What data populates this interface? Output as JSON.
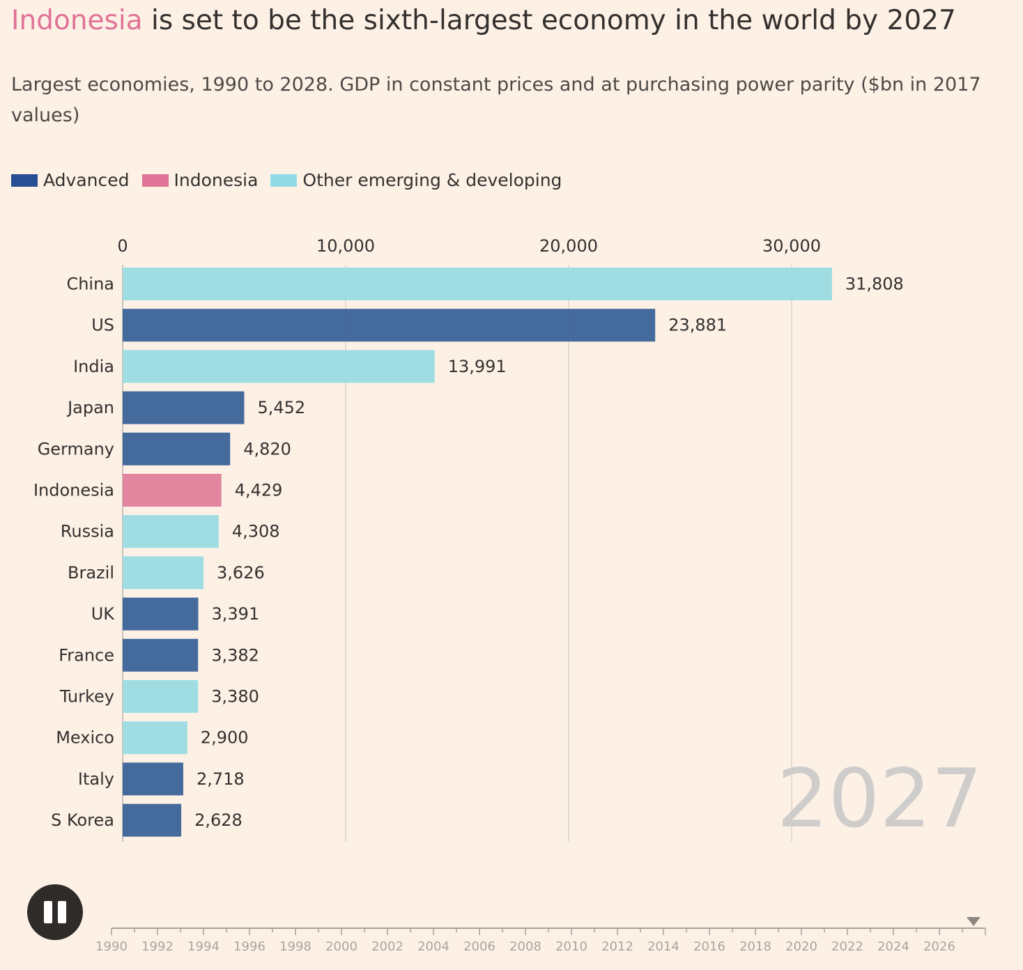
{
  "header": {
    "title_highlight": "Indonesia",
    "title_rest": " is set to be the sixth-largest economy in the world by 2027",
    "subtitle": "Largest economies, 1990 to 2028. GDP in constant prices and at purchasing power parity ($bn in 2017 values)"
  },
  "legend": {
    "items": [
      {
        "label": "Advanced",
        "color": "#265093"
      },
      {
        "label": "Indonesia",
        "color": "#e07397"
      },
      {
        "label": "Other emerging & developing",
        "color": "#90dbe6"
      }
    ]
  },
  "chart_data": {
    "type": "bar",
    "orientation": "horizontal",
    "title": "Indonesia is set to be the sixth-largest economy in the world by 2027",
    "subtitle": "Largest economies, 1990 to 2028. GDP in constant prices and at purchasing power parity ($bn in 2017 values)",
    "current_year": "2027",
    "xlim": [
      0,
      35000
    ],
    "x_ticks": [
      0,
      10000,
      20000,
      30000
    ],
    "x_tick_labels": [
      "0",
      "10,000",
      "20,000",
      "30,000"
    ],
    "grid": true,
    "categories": [
      "China",
      "US",
      "India",
      "Japan",
      "Germany",
      "Indonesia",
      "Russia",
      "Brazil",
      "UK",
      "France",
      "Turkey",
      "Mexico",
      "Italy",
      "S Korea"
    ],
    "values": [
      31808,
      23881,
      13991,
      5452,
      4820,
      4429,
      4308,
      3626,
      3391,
      3382,
      3380,
      2900,
      2718,
      2628
    ],
    "value_labels": [
      "31,808",
      "23,881",
      "13,991",
      "5,452",
      "4,820",
      "4,429",
      "4,308",
      "3,626",
      "3,391",
      "3,382",
      "3,380",
      "2,900",
      "2,718",
      "2,628"
    ],
    "groups": [
      "other",
      "advanced",
      "other",
      "advanced",
      "advanced",
      "indonesia",
      "other",
      "other",
      "advanced",
      "advanced",
      "other",
      "other",
      "advanced",
      "advanced"
    ],
    "group_colors": {
      "advanced": "#3b6298",
      "indonesia": "#e07e9a",
      "other": "#9adbe3"
    }
  },
  "timeline": {
    "start_year": 1990,
    "end_year": 2028,
    "current_year": 2027,
    "labels": [
      "1990",
      "1992",
      "1994",
      "1996",
      "1998",
      "2000",
      "2002",
      "2004",
      "2006",
      "2008",
      "2010",
      "2012",
      "2014",
      "2016",
      "2018",
      "2020",
      "2022",
      "2024",
      "2026"
    ]
  },
  "controls": {
    "pause_icon": "pause-icon"
  }
}
